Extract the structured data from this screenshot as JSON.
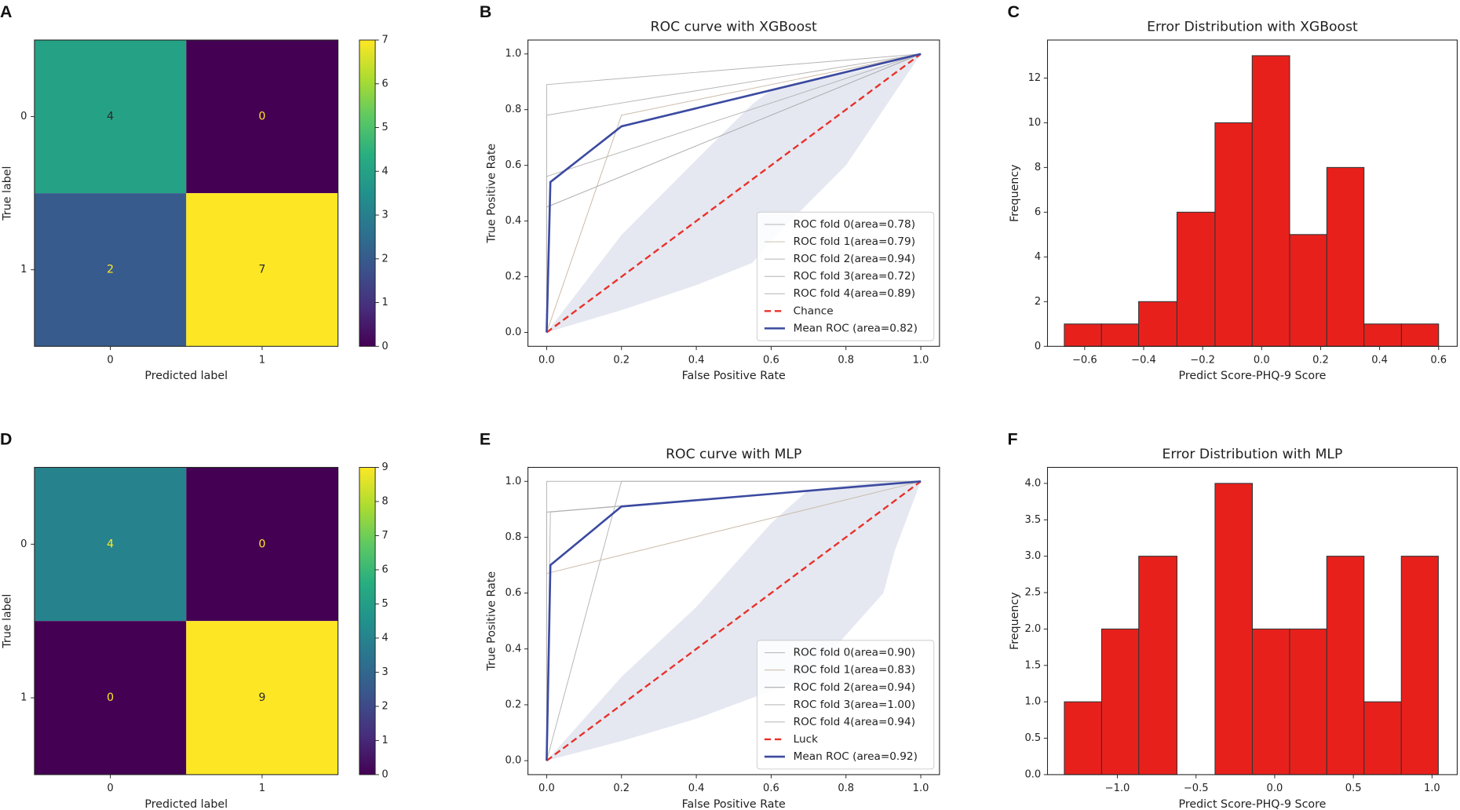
{
  "chart_data": [
    {
      "type": "heatmap",
      "panel": "A",
      "x_categories": [
        "0",
        "1"
      ],
      "y_categories": [
        "0",
        "1"
      ],
      "values": [
        [
          4,
          0
        ],
        [
          2,
          7
        ]
      ],
      "xlabel": "Predicted label",
      "ylabel": "True label",
      "cmap": "viridis",
      "colorbar_lim": [
        0,
        7
      ],
      "colorbar_ticks": [
        0,
        1,
        2,
        3,
        4,
        5,
        6,
        7
      ]
    },
    {
      "type": "line",
      "panel": "B",
      "title": "ROC curve with XGBoost",
      "xlabel": "False Positive Rate",
      "ylabel": "True Positive Rate",
      "xlim": [
        -0.05,
        1.05
      ],
      "ylim": [
        -0.05,
        1.05
      ],
      "xticks": [
        {
          "value": 0,
          "label": "0.0"
        },
        0.2,
        0.4,
        0.6,
        0.8,
        {
          "value": 1,
          "label": "1.0"
        }
      ],
      "yticks": [
        {
          "value": 0,
          "label": "0.0"
        },
        0.2,
        0.4,
        0.6,
        0.8,
        {
          "value": 1,
          "label": "1.0"
        }
      ],
      "legend": "lower right",
      "band": {
        "color": "#dfe2ee",
        "x": [
          0,
          0.2,
          0.4,
          0.55,
          0.6,
          0.8,
          0.9,
          1
        ],
        "lower": [
          0,
          0.08,
          0.17,
          0.25,
          0.33,
          0.6,
          0.8,
          1
        ],
        "upper": [
          0,
          0.35,
          0.62,
          0.82,
          0.87,
          0.93,
          0.96,
          1
        ]
      },
      "series": [
        {
          "name": "ROC fold 0(area=0.78)",
          "color": "#b4b4b4",
          "width": 0.8,
          "x": [
            0,
            0,
            1
          ],
          "values": [
            0,
            0.56,
            1
          ]
        },
        {
          "name": "ROC fold 1(area=0.79)",
          "color": "#c9b8a6",
          "width": 0.8,
          "x": [
            0,
            0.2,
            1
          ],
          "values": [
            0,
            0.78,
            1
          ]
        },
        {
          "name": "ROC fold 2(area=0.94)",
          "color": "#b4b4b4",
          "width": 0.8,
          "x": [
            0,
            0,
            1
          ],
          "values": [
            0,
            0.89,
            1
          ]
        },
        {
          "name": "ROC fold 3(area=0.72)",
          "color": "#a8a8a8",
          "width": 0.8,
          "x": [
            0,
            0,
            1
          ],
          "values": [
            0,
            0.45,
            1
          ]
        },
        {
          "name": "ROC fold 4(area=0.89)",
          "color": "#b4b4b4",
          "width": 0.8,
          "x": [
            0,
            0,
            1
          ],
          "values": [
            0,
            0.78,
            1
          ]
        },
        {
          "name": "Chance",
          "color": "#e8312a",
          "width": 2,
          "dash": true,
          "x": [
            0,
            1
          ],
          "values": [
            0,
            1
          ]
        },
        {
          "name": "Mean ROC (area=0.82)",
          "color": "#3b4aa0",
          "width": 2.2,
          "x": [
            0,
            0.01,
            0.2,
            1
          ],
          "values": [
            0,
            0.54,
            0.74,
            1
          ]
        }
      ]
    },
    {
      "type": "histogram",
      "panel": "C",
      "title": "Error Distribution with XGBoost",
      "xlabel": "Predict Score-PHQ-9 Score",
      "ylabel": "Frequency",
      "color": "#e8201c",
      "bins": [
        -0.669,
        -0.543,
        -0.417,
        -0.287,
        -0.158,
        -0.032,
        0.095,
        0.221,
        0.347,
        0.474,
        0.6
      ],
      "values": [
        1,
        1,
        2,
        6,
        10,
        13,
        5,
        8,
        1,
        1
      ],
      "xlim": [
        -0.726,
        0.663
      ],
      "ylim": [
        0,
        13.7
      ],
      "xticks": [
        {
          "value": -0.6,
          "label": "−0.6"
        },
        {
          "value": -0.4,
          "label": "−0.4"
        },
        {
          "value": -0.2,
          "label": "−0.2"
        },
        {
          "value": 0,
          "label": "0.0"
        },
        0.2,
        0.4,
        0.6
      ],
      "yticks": [
        0,
        2,
        4,
        6,
        8,
        10,
        12
      ]
    },
    {
      "type": "heatmap",
      "panel": "D",
      "x_categories": [
        "0",
        "1"
      ],
      "y_categories": [
        "0",
        "1"
      ],
      "values": [
        [
          4,
          0
        ],
        [
          0,
          9
        ]
      ],
      "xlabel": "Predicted label",
      "ylabel": "True label",
      "cmap": "viridis",
      "colorbar_lim": [
        0,
        9
      ],
      "colorbar_ticks": [
        0,
        1,
        2,
        3,
        4,
        5,
        6,
        7,
        8,
        9
      ]
    },
    {
      "type": "line",
      "panel": "E",
      "title": "ROC curve with MLP",
      "xlabel": "False Positive Rate",
      "ylabel": "True Positive Rate",
      "xlim": [
        -0.05,
        1.05
      ],
      "ylim": [
        -0.05,
        1.05
      ],
      "xticks": [
        {
          "value": 0,
          "label": "0.0"
        },
        0.2,
        0.4,
        0.6,
        0.8,
        {
          "value": 1,
          "label": "1.0"
        }
      ],
      "yticks": [
        {
          "value": 0,
          "label": "0.0"
        },
        0.2,
        0.4,
        0.6,
        0.8,
        {
          "value": 1,
          "label": "1.0"
        }
      ],
      "legend": "lower right",
      "band": {
        "color": "#dfe2ee",
        "x": [
          0,
          0.2,
          0.4,
          0.6,
          0.7,
          0.9,
          0.93,
          1
        ],
        "lower": [
          0,
          0.07,
          0.15,
          0.25,
          0.3,
          0.6,
          0.75,
          1
        ],
        "upper": [
          0,
          0.3,
          0.55,
          0.85,
          0.97,
          1,
          1,
          1
        ]
      },
      "series": [
        {
          "name": "ROC fold 0(area=0.90)",
          "color": "#b4b4b4",
          "width": 0.8,
          "x": [
            0,
            0.2,
            1
          ],
          "values": [
            0,
            1,
            1
          ]
        },
        {
          "name": "ROC fold 1(area=0.83)",
          "color": "#c9b8a6",
          "width": 0.8,
          "x": [
            0,
            0,
            1
          ],
          "values": [
            0,
            0.67,
            1
          ]
        },
        {
          "name": "ROC fold 2(area=0.94)",
          "color": "#a0a0a0",
          "width": 0.8,
          "x": [
            0,
            0,
            1
          ],
          "values": [
            0,
            0.89,
            1
          ]
        },
        {
          "name": "ROC fold 3(area=1.00)",
          "color": "#b4b4b4",
          "width": 0.8,
          "x": [
            0,
            0,
            1
          ],
          "values": [
            0,
            1,
            1
          ]
        },
        {
          "name": "ROC fold 4(area=0.94)",
          "color": "#b4b4b4",
          "width": 0.8,
          "x": [
            0,
            0.01,
            1
          ],
          "values": [
            0,
            0.89,
            1
          ]
        },
        {
          "name": "Luck",
          "color": "#e8312a",
          "width": 2,
          "dash": true,
          "x": [
            0,
            1
          ],
          "values": [
            0,
            1
          ]
        },
        {
          "name": "Mean ROC (area=0.92)",
          "color": "#3b4aa0",
          "width": 2.2,
          "x": [
            0,
            0.01,
            0.2,
            1
          ],
          "values": [
            0,
            0.7,
            0.91,
            1
          ]
        }
      ]
    },
    {
      "type": "histogram",
      "panel": "F",
      "title": "Error Distribution with MLP",
      "xlabel": "Predict Score-PHQ-9 Score",
      "ylabel": "Frequency",
      "color": "#e8201c",
      "bins": [
        -1.337,
        -1.1,
        -0.864,
        -0.621,
        -0.379,
        -0.142,
        0.095,
        0.331,
        0.568,
        0.805,
        1.04
      ],
      "values": [
        1,
        2,
        3,
        0,
        4,
        2,
        2,
        3,
        1,
        3
      ],
      "xlim": [
        -1.444,
        1.16
      ],
      "ylim": [
        0,
        4.22
      ],
      "xticks": [
        {
          "value": -1,
          "label": "−1.0"
        },
        {
          "value": -0.5,
          "label": "−0.5"
        },
        {
          "value": 0,
          "label": "0.0"
        },
        0.5,
        {
          "value": 1,
          "label": "1.0"
        }
      ],
      "yticks": [
        {
          "value": 0,
          "label": "0.0"
        },
        0.5,
        {
          "value": 1,
          "label": "1.0"
        },
        1.5,
        {
          "value": 2,
          "label": "2.0"
        },
        2.5,
        {
          "value": 3,
          "label": "3.0"
        },
        3.5,
        {
          "value": 4,
          "label": "4.0"
        }
      ]
    }
  ]
}
